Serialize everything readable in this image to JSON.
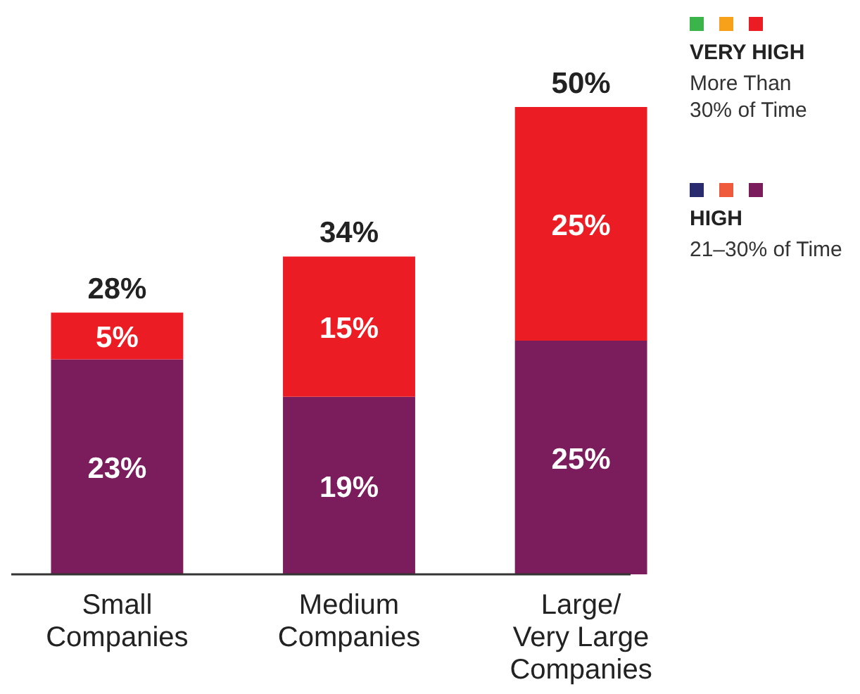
{
  "chart_data": {
    "type": "bar",
    "stacked": true,
    "categories": [
      "Small\nCompanies",
      "Medium\nCompanies",
      "Large/\nVery Large\nCompanies"
    ],
    "series": [
      {
        "name": "HIGH",
        "color": "#7b1c5c",
        "values": [
          23,
          19,
          25
        ],
        "value_labels": [
          "23%",
          "19%",
          "25%"
        ]
      },
      {
        "name": "VERY HIGH",
        "color": "#ec1c24",
        "values": [
          5,
          15,
          25
        ],
        "value_labels": [
          "5%",
          "15%",
          "25%"
        ]
      }
    ],
    "totals": [
      "28%",
      "34%",
      "50%"
    ],
    "legend": "top right",
    "annotations": [
      "21–30% of Time",
      "More Than\n30% of Time"
    ]
  }
}
